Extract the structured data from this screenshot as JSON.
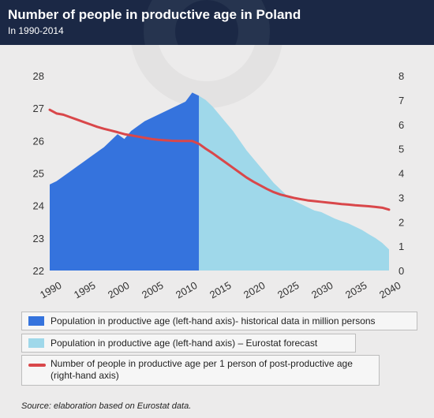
{
  "header": {
    "title": "Number of people in productive age in Poland",
    "subtitle": "In 1990-2014"
  },
  "source": "Source: elaboration based on Eurostat data.",
  "colors": {
    "header_bg": "#1b2845",
    "historical": "#3573dd",
    "forecast": "#9fd8ea",
    "ratio_line": "#d9474a"
  },
  "chart_data": {
    "type": "area",
    "x_ticks": [
      "1990",
      "1995",
      "2000",
      "2005",
      "2010",
      "2015",
      "2020",
      "2025",
      "2030",
      "2035",
      "2040"
    ],
    "xlim": [
      1990,
      2040
    ],
    "y_left": {
      "ticks": [
        "22",
        "23",
        "24",
        "25",
        "26",
        "27",
        "28"
      ],
      "lim": [
        22,
        28
      ]
    },
    "y_right": {
      "ticks": [
        "0",
        "1",
        "2",
        "3",
        "4",
        "5",
        "6",
        "7",
        "8"
      ],
      "lim": [
        0,
        8
      ]
    },
    "series": [
      {
        "name": "Population in productive age (left-hand axis)- historical data in million persons",
        "axis": "left",
        "kind": "area",
        "x": [
          1990,
          1991,
          1992,
          1993,
          1994,
          1995,
          1996,
          1997,
          1998,
          1999,
          2000,
          2001,
          2002,
          2003,
          2004,
          2005,
          2006,
          2007,
          2008,
          2009,
          2010,
          2011,
          2012
        ],
        "y": [
          24.65,
          24.75,
          24.9,
          25.05,
          25.2,
          25.35,
          25.5,
          25.65,
          25.8,
          26.0,
          26.2,
          26.05,
          26.3,
          26.45,
          26.6,
          26.7,
          26.8,
          26.9,
          27.0,
          27.1,
          27.2,
          27.48,
          27.38
        ]
      },
      {
        "name": "Population in productive age (left-hand axis) – Eurostat forecast",
        "axis": "left",
        "kind": "area",
        "x": [
          2012,
          2013,
          2014,
          2015,
          2016,
          2017,
          2018,
          2019,
          2020,
          2021,
          2022,
          2023,
          2024,
          2025,
          2026,
          2027,
          2028,
          2029,
          2030,
          2031,
          2032,
          2033,
          2034,
          2035,
          2036,
          2037,
          2038,
          2039,
          2040
        ],
        "y": [
          27.38,
          27.25,
          27.05,
          26.8,
          26.55,
          26.3,
          26.0,
          25.7,
          25.45,
          25.2,
          24.95,
          24.7,
          24.5,
          24.3,
          24.15,
          24.05,
          23.95,
          23.85,
          23.8,
          23.7,
          23.6,
          23.52,
          23.45,
          23.35,
          23.25,
          23.12,
          23.0,
          22.85,
          22.65
        ]
      },
      {
        "name": "Number of people in productive age per 1 person of post-productive age (right-hand axis)",
        "axis": "right",
        "kind": "line",
        "x": [
          1990,
          1991,
          1992,
          1993,
          1994,
          1995,
          1996,
          1997,
          1998,
          1999,
          2000,
          2001,
          2002,
          2003,
          2004,
          2005,
          2006,
          2007,
          2008,
          2009,
          2010,
          2011,
          2012,
          2013,
          2014,
          2015,
          2016,
          2017,
          2018,
          2019,
          2020,
          2021,
          2022,
          2023,
          2024,
          2025,
          2026,
          2027,
          2028,
          2029,
          2030,
          2031,
          2032,
          2033,
          2034,
          2035,
          2036,
          2037,
          2038,
          2039,
          2040
        ],
        "y": [
          6.6,
          6.45,
          6.4,
          6.3,
          6.2,
          6.1,
          6.0,
          5.9,
          5.82,
          5.75,
          5.68,
          5.6,
          5.55,
          5.5,
          5.45,
          5.4,
          5.37,
          5.35,
          5.33,
          5.32,
          5.32,
          5.32,
          5.2,
          5.0,
          4.82,
          4.62,
          4.42,
          4.22,
          4.02,
          3.82,
          3.65,
          3.5,
          3.35,
          3.22,
          3.12,
          3.05,
          2.98,
          2.93,
          2.88,
          2.85,
          2.82,
          2.79,
          2.76,
          2.73,
          2.71,
          2.68,
          2.66,
          2.64,
          2.61,
          2.58,
          2.5
        ]
      }
    ],
    "grid": false,
    "legend_position": "bottom"
  }
}
